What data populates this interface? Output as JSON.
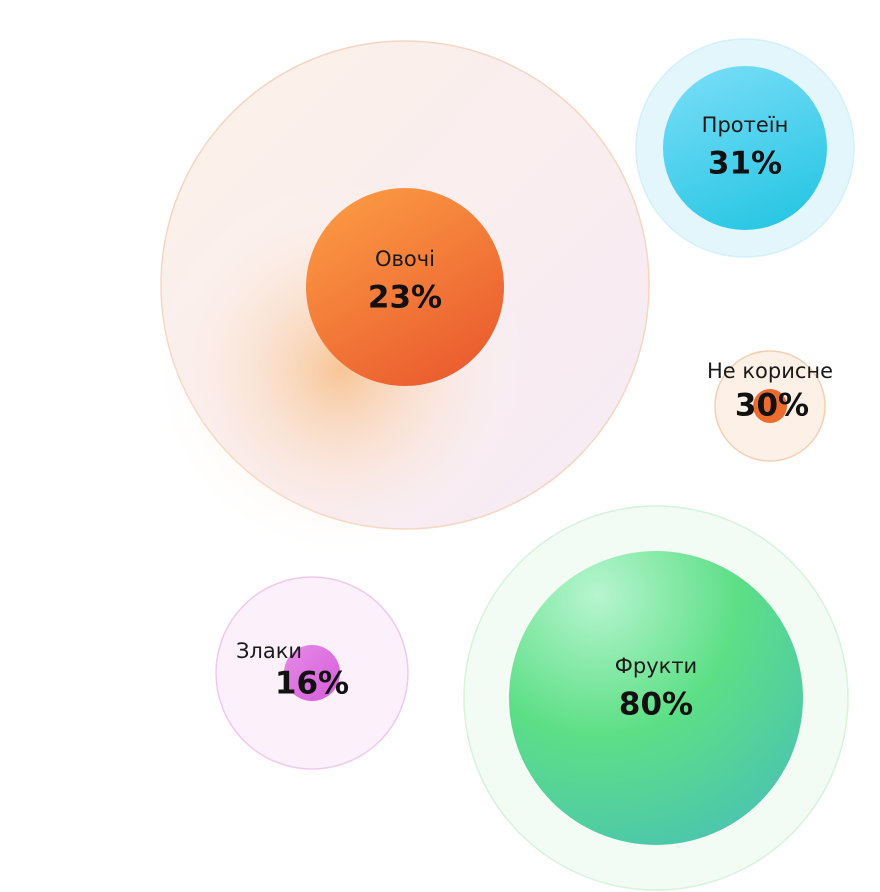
{
  "bubbles": [
    {
      "label": "Овочі",
      "value": "23%"
    },
    {
      "label": "Протеїн",
      "value": "31%"
    },
    {
      "label": "Не корисне",
      "value": "30%"
    },
    {
      "label": "Злаки",
      "value": "16%"
    },
    {
      "label": "Фрукти",
      "value": "80%"
    }
  ]
}
